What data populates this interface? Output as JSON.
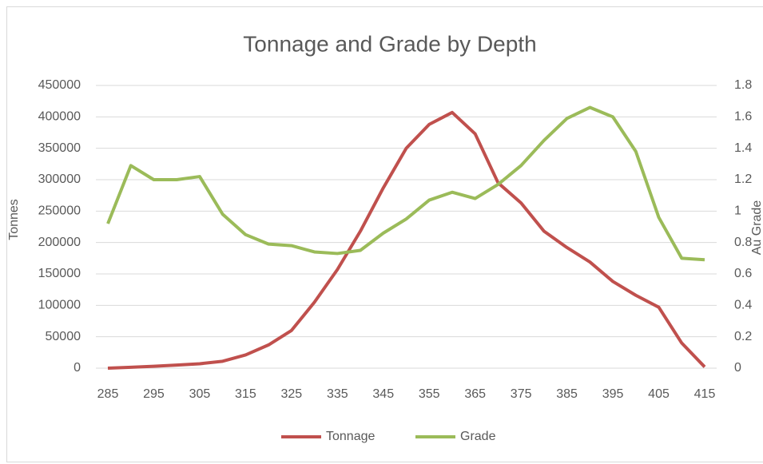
{
  "chart_data": {
    "type": "line",
    "title": "Tonnage and Grade by Depth",
    "y_label": "Tonnes",
    "y2_label": "Au Grade",
    "x": [
      285,
      290,
      295,
      300,
      305,
      310,
      315,
      320,
      325,
      330,
      335,
      340,
      345,
      350,
      355,
      360,
      365,
      370,
      375,
      380,
      385,
      390,
      395,
      400,
      405,
      410,
      415
    ],
    "xlim": [
      285,
      415
    ],
    "xticks": [
      285,
      295,
      305,
      315,
      325,
      335,
      345,
      355,
      365,
      375,
      385,
      395,
      405,
      415
    ],
    "ylim": [
      0,
      450000
    ],
    "yticks": [
      0,
      50000,
      100000,
      150000,
      200000,
      250000,
      300000,
      350000,
      400000,
      450000
    ],
    "y2lim": [
      0,
      1.8
    ],
    "y2ticks": [
      0,
      0.2,
      0.4,
      0.6,
      0.8,
      1,
      1.2,
      1.4,
      1.6,
      1.8
    ],
    "grid": true,
    "legend": "bottom",
    "series": [
      {
        "name": "Tonnage",
        "color": "#c0504d",
        "values": [
          0,
          1500,
          3000,
          5000,
          7000,
          11000,
          21000,
          37000,
          60000,
          105000,
          157000,
          218000,
          287000,
          350000,
          388000,
          407000,
          373000,
          295000,
          263000,
          218000,
          192000,
          169000,
          138000,
          116000,
          97000,
          40000,
          2000
        ]
      },
      {
        "name": "Grade",
        "color": "#9bbb59",
        "axis": "y2",
        "values": [
          0.92,
          1.29,
          1.2,
          1.2,
          1.22,
          0.98,
          0.85,
          0.79,
          0.78,
          0.74,
          0.73,
          0.75,
          0.86,
          0.95,
          1.07,
          1.12,
          1.08,
          1.17,
          1.29,
          1.45,
          1.59,
          1.66,
          1.6,
          1.38,
          0.96,
          0.7,
          0.69
        ]
      }
    ]
  }
}
